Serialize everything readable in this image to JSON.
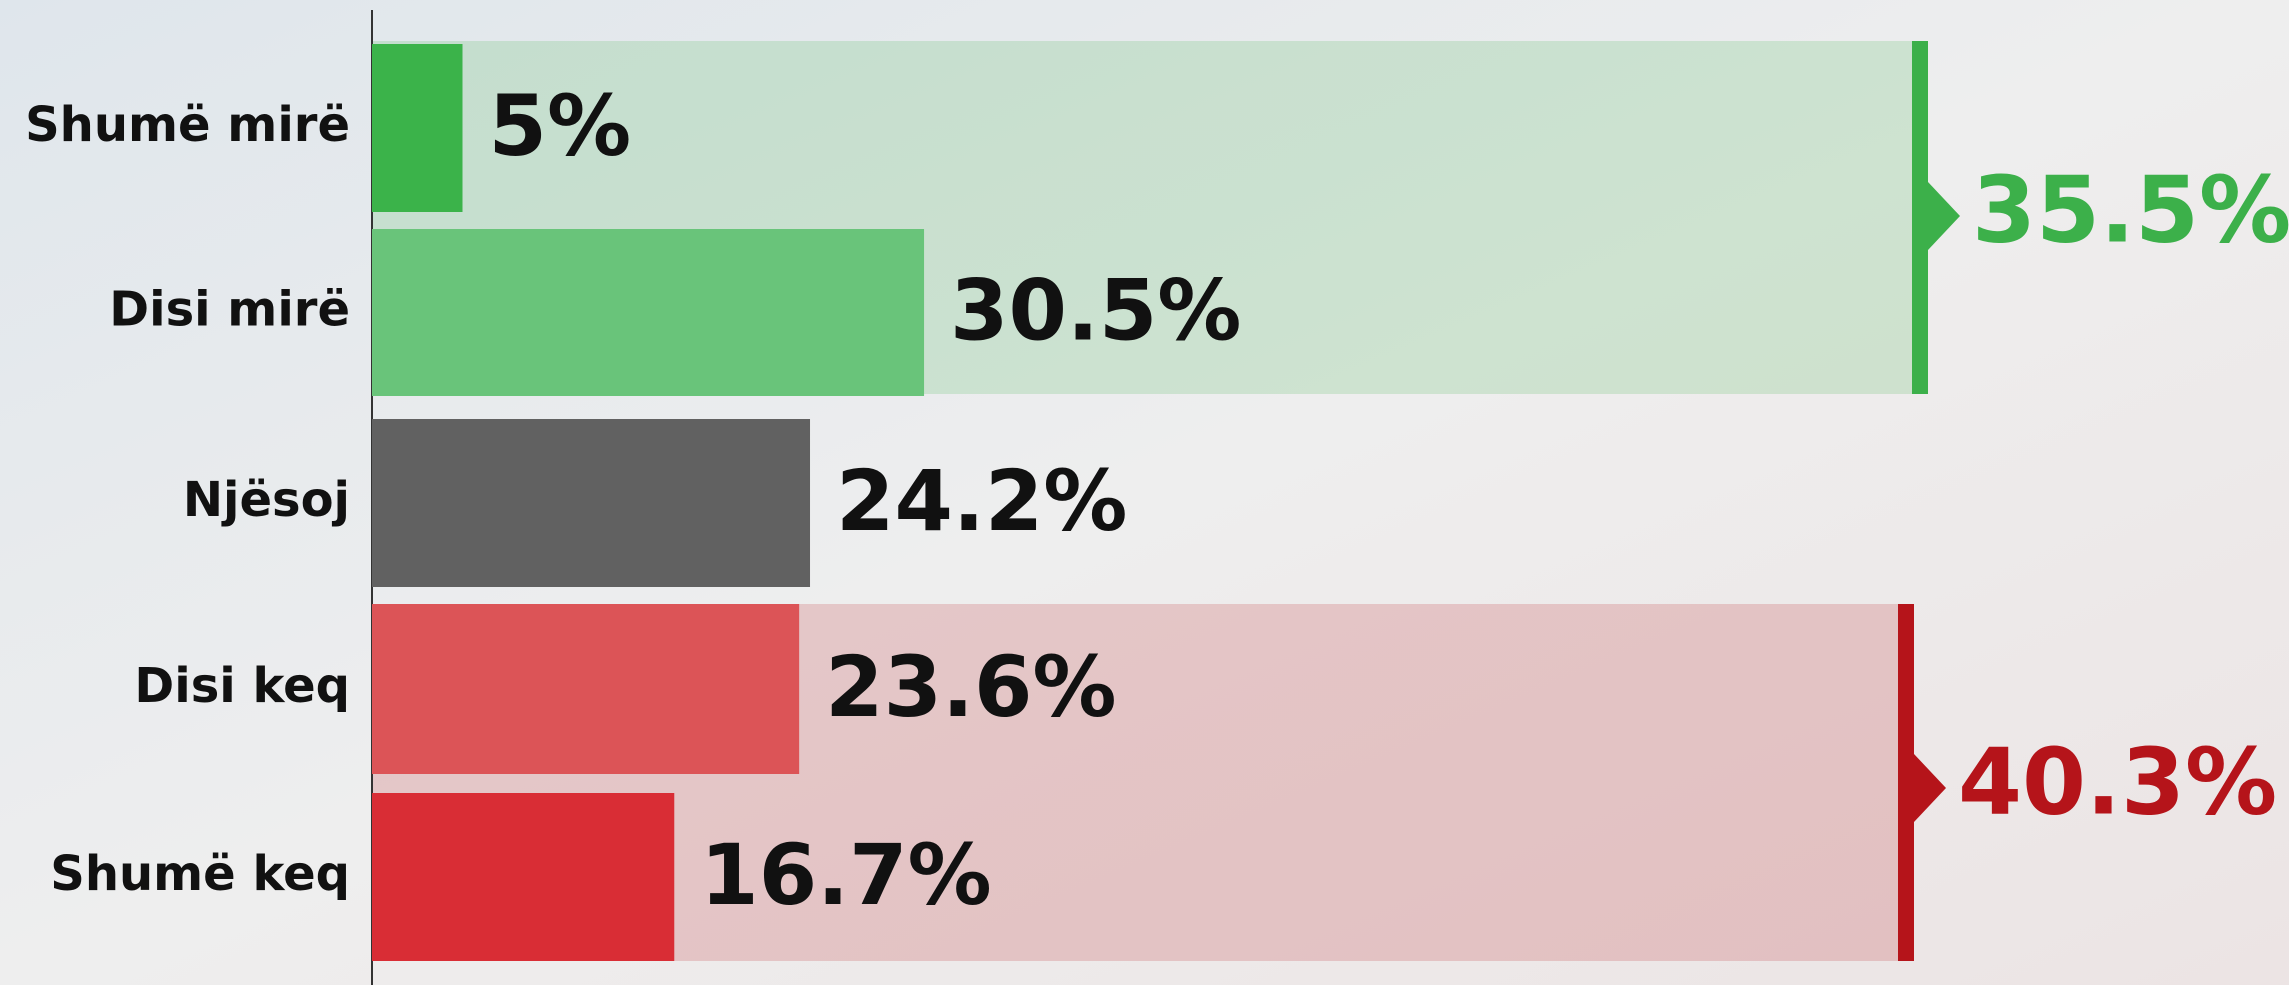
{
  "chart_data": {
    "type": "hbar",
    "categories": [
      "Shumë mirë",
      "Disi mirë",
      "Njësoj",
      "Disi keq",
      "Shumë keq"
    ],
    "values": [
      5,
      30.5,
      24.2,
      23.6,
      16.7
    ],
    "value_labels": [
      "5%",
      "30.5%",
      "24.2%",
      "23.6%",
      "16.7%"
    ],
    "colors": [
      "#3bb34a",
      "#69c47a",
      "#616161",
      "#dc5457",
      "#d92d35"
    ],
    "xlim": [
      0,
      100
    ],
    "groups": [
      {
        "value": 35.5,
        "label": "35.5%",
        "color": "#3cb04a"
      },
      {
        "value": 40.3,
        "label": "40.3%",
        "color": "#b5141a"
      }
    ]
  }
}
